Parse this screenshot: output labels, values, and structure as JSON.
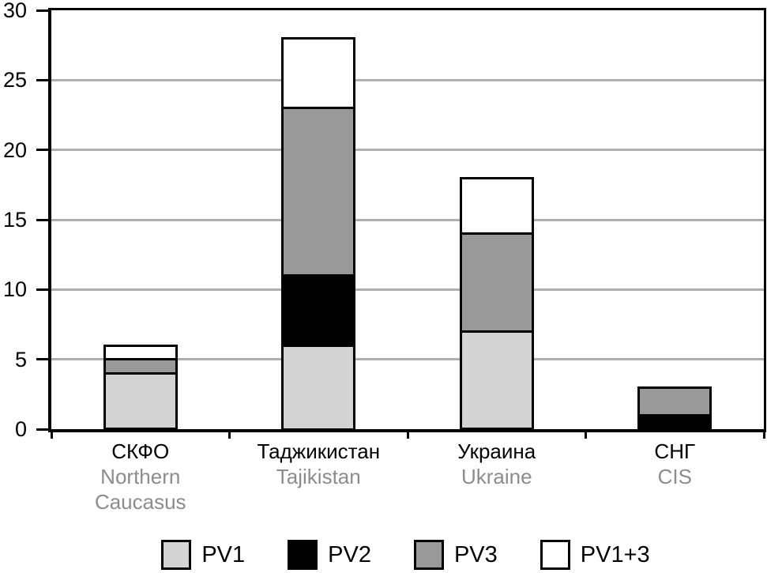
{
  "chart_data": {
    "type": "bar",
    "stacked": true,
    "title": "",
    "xlabel": "",
    "ylabel": "",
    "ylim": [
      0,
      30
    ],
    "yticks": [
      0,
      5,
      10,
      15,
      20,
      25,
      30
    ],
    "grid": true,
    "legend_position": "bottom",
    "categories": [
      {
        "label_ru": "СКФО",
        "label_en": "Northern Caucasus"
      },
      {
        "label_ru": "Таджикистан",
        "label_en": "Tajikistan"
      },
      {
        "label_ru": "Украина",
        "label_en": "Ukraine"
      },
      {
        "label_ru": "СНГ",
        "label_en": "CIS"
      }
    ],
    "series": [
      {
        "name": "PV1",
        "color": "#d3d3d3",
        "values": [
          4,
          6,
          7,
          0
        ]
      },
      {
        "name": "PV2",
        "color": "#000000",
        "values": [
          0,
          5,
          0,
          1
        ]
      },
      {
        "name": "PV3",
        "color": "#999999",
        "values": [
          1,
          12,
          7,
          2
        ]
      },
      {
        "name": "PV1+3",
        "color": "#ffffff",
        "values": [
          1,
          5,
          4,
          0
        ]
      }
    ],
    "stack_totals": [
      6,
      28,
      18,
      3
    ]
  },
  "legend": {
    "items": [
      {
        "label": "PV1",
        "color": "#d3d3d3"
      },
      {
        "label": "PV2",
        "color": "#000000"
      },
      {
        "label": "PV3",
        "color": "#999999"
      },
      {
        "label": "PV1+3",
        "color": "#ffffff"
      }
    ]
  },
  "colors": {
    "axis": "#000000",
    "gridline": "#b0b0b0",
    "label_secondary": "#8c8c8c",
    "background": "#ffffff"
  }
}
